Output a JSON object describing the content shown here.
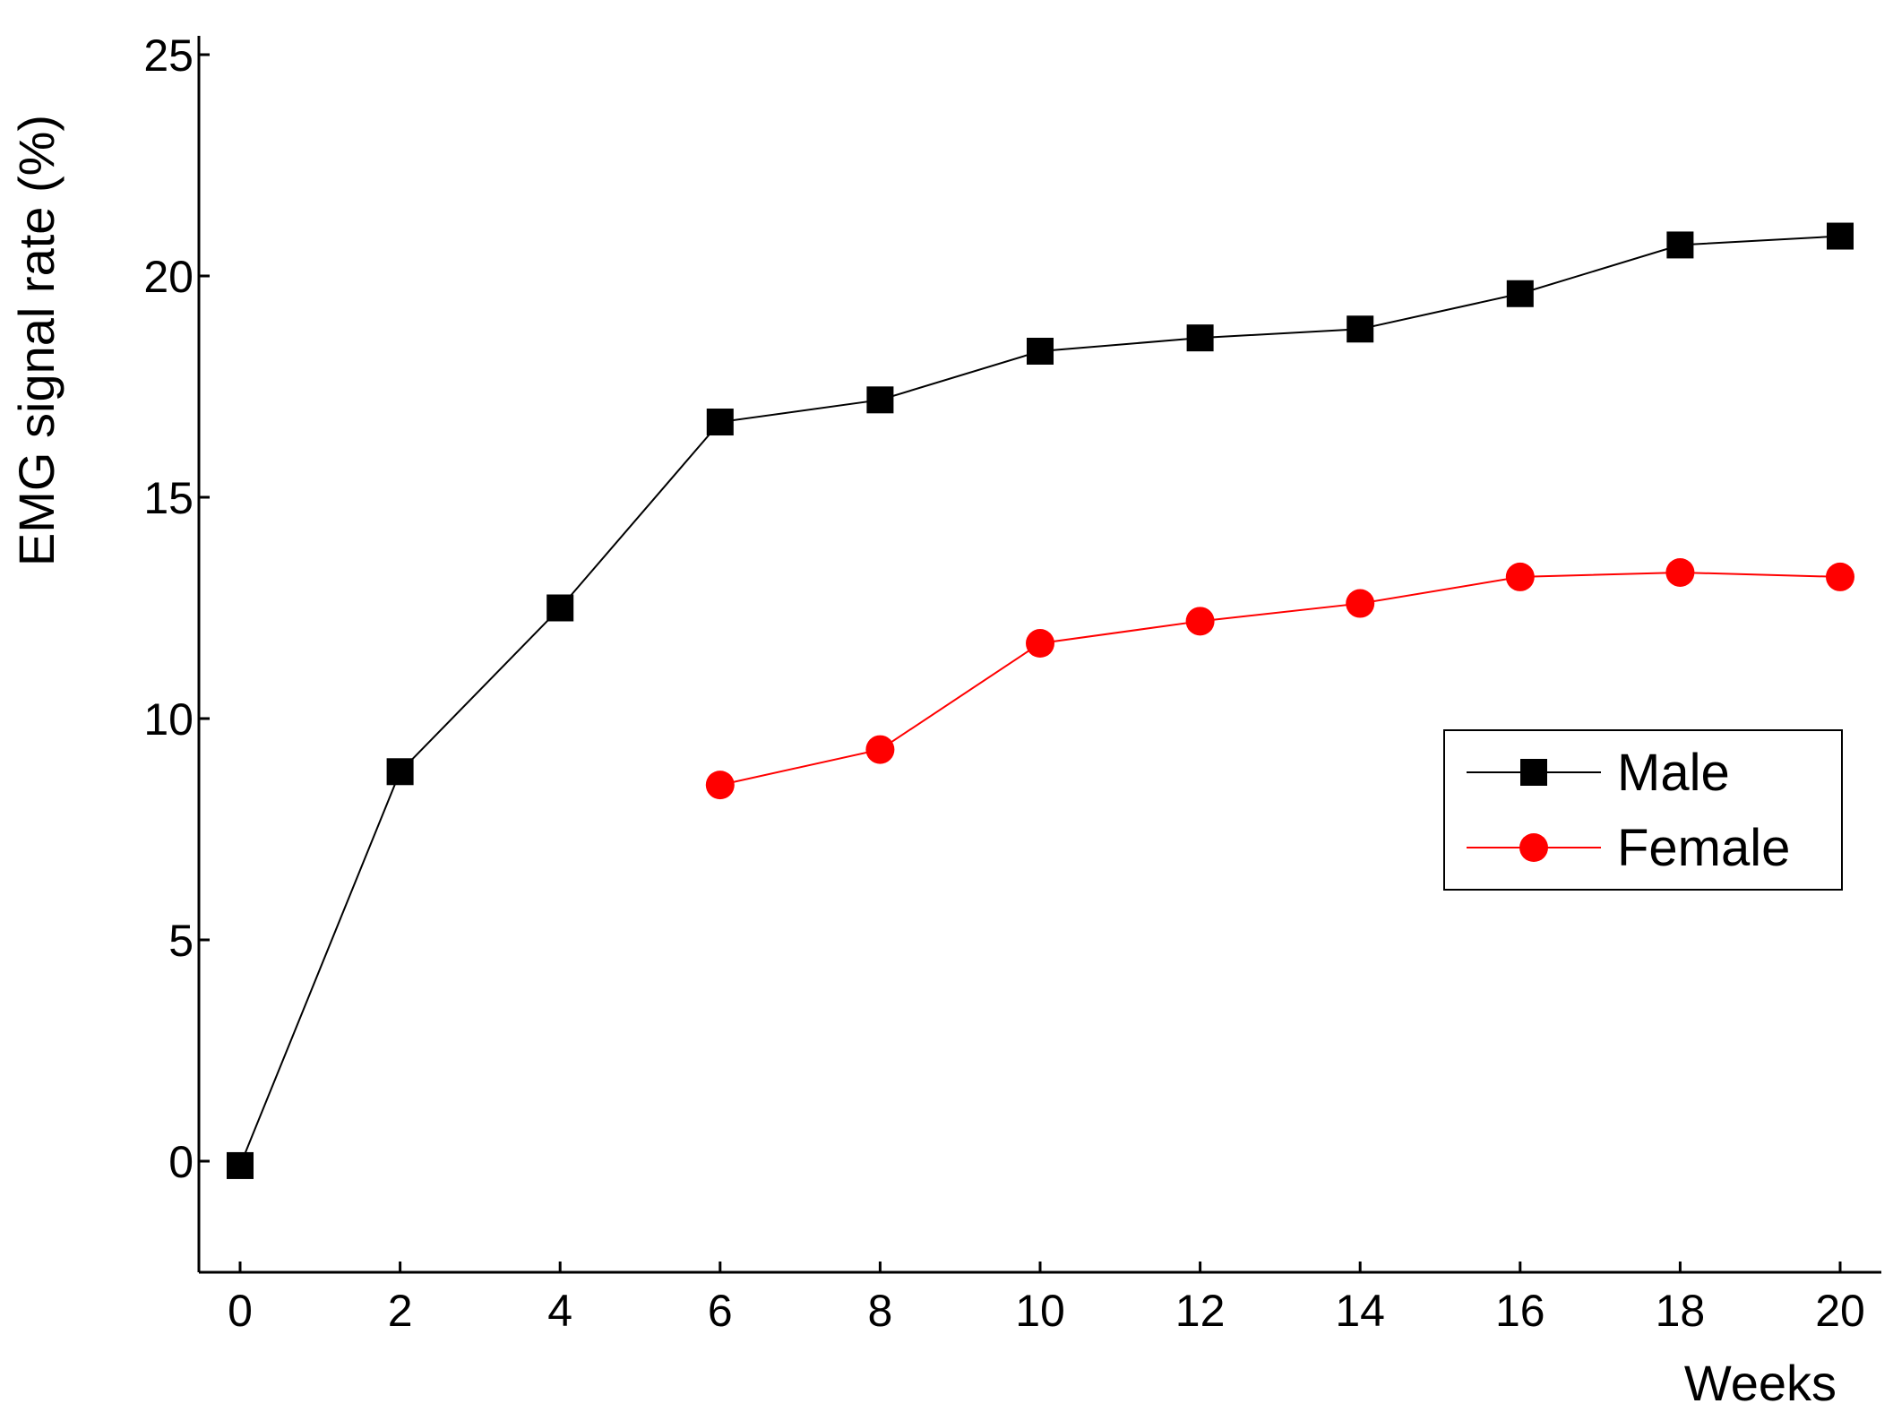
{
  "chart_data": {
    "type": "line",
    "title": "",
    "xlabel": "Weeks",
    "ylabel": "EMG signal rate (%)",
    "xlim": [
      -0.5,
      20.5
    ],
    "ylim": [
      -2.5,
      25
    ],
    "xticks": [
      0,
      2,
      4,
      6,
      8,
      10,
      12,
      14,
      16,
      18,
      20
    ],
    "yticks": [
      0,
      5,
      10,
      15,
      20,
      25
    ],
    "grid": false,
    "legend_position": "right",
    "series": [
      {
        "name": "Male",
        "color": "#000000",
        "marker": "square",
        "x": [
          0,
          2,
          4,
          6,
          8,
          10,
          12,
          14,
          16,
          18,
          20
        ],
        "y": [
          -0.1,
          8.8,
          12.5,
          16.7,
          17.2,
          18.3,
          18.6,
          18.8,
          19.6,
          20.7,
          20.9
        ]
      },
      {
        "name": "Female",
        "color": "#ff0000",
        "marker": "circle",
        "x": [
          6,
          8,
          10,
          12,
          14,
          16,
          18,
          20
        ],
        "y": [
          8.5,
          9.3,
          11.7,
          12.2,
          12.6,
          13.2,
          13.3,
          13.2
        ]
      }
    ]
  }
}
